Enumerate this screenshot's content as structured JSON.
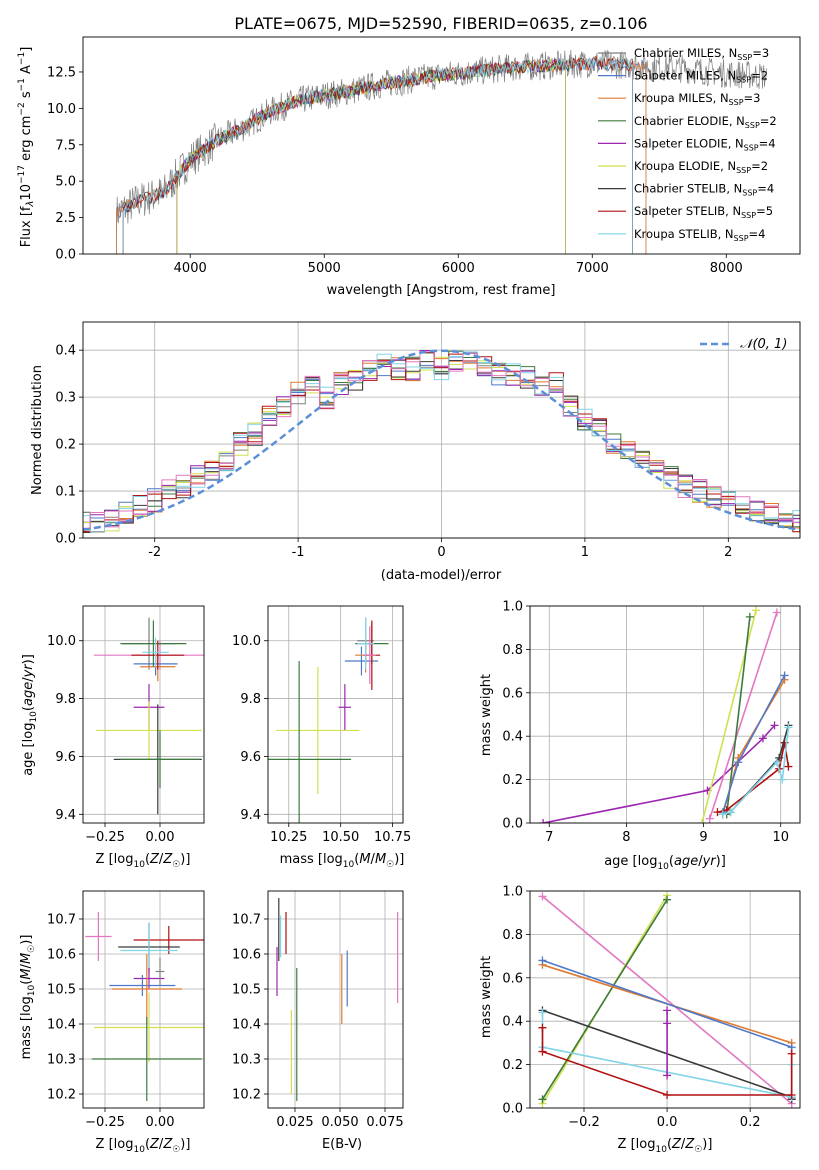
{
  "title": "PLATE=0675, MJD=52590, FIBERID=0635, z=0.106",
  "colors": {
    "Chabrier MILES": "#808080",
    "Salpeter MILES": "#4f79c8",
    "Kroupa MILES": "#e07a2e",
    "Chabrier ELODIE": "#3d7a3d",
    "Salpeter ELODIE": "#9b27af",
    "Kroupa ELODIE": "#d2e050",
    "Chabrier STELIB": "#3a3a3a",
    "Salpeter STELIB": "#b01010",
    "Kroupa STELIB": "#80d4e8",
    "pink": "#e377c2",
    "normal": "#5b8fd9"
  },
  "chart_data": [
    {
      "id": "spectrum",
      "type": "line",
      "xlabel": "wavelength [Angstrom, rest frame]",
      "ylabel": "Flux [fλ10⁻¹⁷ erg cm⁻² s⁻¹ A⁻¹]",
      "xlim": [
        3200,
        8550
      ],
      "ylim": [
        0,
        14.9
      ],
      "xticks": [
        4000,
        5000,
        6000,
        7000,
        8000
      ],
      "yticks": [
        0.0,
        2.5,
        5.0,
        7.5,
        10.0,
        12.5
      ],
      "legend_position": "right",
      "legend": [
        "Chabrier MILES, N_SSP=3",
        "Salpeter MILES, N_SSP=2",
        "Kroupa MILES, N_SSP=3",
        "Chabrier ELODIE, N_SSP=2",
        "Salpeter ELODIE, N_SSP=4",
        "Kroupa ELODIE, N_SSP=2",
        "Chabrier STELIB, N_SSP=4",
        "Salpeter STELIB, N_SSP=5",
        "Kroupa STELIB, N_SSP=4"
      ],
      "x": [
        3450,
        3600,
        3800,
        4000,
        4200,
        4400,
        4600,
        4800,
        5000,
        5200,
        5400,
        5600,
        5800,
        6000,
        6200,
        6400,
        6600,
        6800,
        7000,
        7200,
        7400,
        7600,
        7800,
        8000,
        8300
      ],
      "y": [
        2.8,
        3.6,
        4.2,
        6.5,
        7.8,
        8.7,
        9.8,
        10.5,
        10.9,
        11.2,
        11.6,
        11.9,
        12.2,
        12.4,
        12.6,
        12.8,
        12.9,
        13.0,
        13.1,
        13.0,
        12.9,
        12.8,
        12.6,
        12.4,
        12.2
      ],
      "model_ranges": [
        [
          3450,
          8300
        ],
        [
          3450,
          7400
        ],
        [
          3450,
          7400
        ],
        [
          3900,
          6800
        ],
        [
          3900,
          6800
        ],
        [
          3900,
          6800
        ],
        [
          3500,
          7300
        ],
        [
          3500,
          7300
        ],
        [
          3500,
          7300
        ]
      ]
    },
    {
      "id": "residual-hist",
      "type": "histogram",
      "xlabel": "(data-model)/error",
      "ylabel": "Normed distribution",
      "xlim": [
        -2.5,
        2.5
      ],
      "ylim": [
        0,
        0.46
      ],
      "xticks": [
        -2,
        -1,
        0,
        1,
        2
      ],
      "yticks": [
        0.0,
        0.1,
        0.2,
        0.3,
        0.4
      ],
      "legend": [
        "𝒩(0, 1)"
      ],
      "legend_position": "upper right",
      "bin_width": 0.1,
      "base_profile": [
        0.03,
        0.035,
        0.04,
        0.05,
        0.055,
        0.06,
        0.07,
        0.08,
        0.09,
        0.1,
        0.11,
        0.12,
        0.13,
        0.14,
        0.15,
        0.16,
        0.18,
        0.2,
        0.22,
        0.24,
        0.26,
        0.28,
        0.3,
        0.31,
        0.33,
        0.32,
        0.3,
        0.31,
        0.33,
        0.34,
        0.35,
        0.36,
        0.37,
        0.38,
        0.36,
        0.35,
        0.36,
        0.38,
        0.37,
        0.36,
        0.38,
        0.39,
        0.38,
        0.37,
        0.36,
        0.35,
        0.36,
        0.35,
        0.34,
        0.33,
        0.32,
        0.33,
        0.3,
        0.28,
        0.27,
        0.25,
        0.24,
        0.22,
        0.2,
        0.18,
        0.17,
        0.16,
        0.15,
        0.14,
        0.13,
        0.12,
        0.11,
        0.1,
        0.09,
        0.085,
        0.08,
        0.07,
        0.065,
        0.06,
        0.055,
        0.05,
        0.045,
        0.04,
        0.035,
        0.03
      ]
    },
    {
      "id": "age-vs-Z",
      "type": "errorbar",
      "xlabel": "Z [log10(Z/Z☉)]",
      "ylabel": "age [log10(age/yr)]",
      "xlim": [
        -0.35,
        0.2
      ],
      "ylim": [
        9.37,
        10.12
      ],
      "xticks": [
        -0.25,
        0.0
      ],
      "xticklabels": [
        "−0.25",
        "0.00"
      ],
      "yticks": [
        9.4,
        9.6,
        9.8,
        10.0
      ],
      "yticklabels": [
        "9.4",
        "9.6",
        "9.8",
        "10.0"
      ],
      "points": [
        {
          "x": 0.0,
          "y": 9.95,
          "xerr": 0.3,
          "yerr": 0.05,
          "c": "pink"
        },
        {
          "x": -0.05,
          "y": 9.99,
          "xerr": 0.12,
          "yerr": 0.09,
          "c": "Chabrier MILES"
        },
        {
          "x": -0.02,
          "y": 9.92,
          "xerr": 0.1,
          "yerr": 0.04,
          "c": "Salpeter MILES"
        },
        {
          "x": -0.01,
          "y": 9.91,
          "xerr": 0.08,
          "yerr": 0.05,
          "c": "Kroupa MILES"
        },
        {
          "x": -0.03,
          "y": 9.99,
          "xerr": 0.15,
          "yerr": 0.08,
          "c": "Chabrier ELODIE"
        },
        {
          "x": -0.05,
          "y": 9.77,
          "xerr": 0.07,
          "yerr": 0.08,
          "c": "Salpeter ELODIE"
        },
        {
          "x": -0.05,
          "y": 9.69,
          "xerr": 0.24,
          "yerr": 0.1,
          "c": "Kroupa ELODIE"
        },
        {
          "x": -0.01,
          "y": 9.95,
          "xerr": 0.12,
          "yerr": 0.05,
          "c": "Salpeter STELIB"
        },
        {
          "x": -0.01,
          "y": 9.59,
          "xerr": 0.2,
          "yerr": 0.19,
          "c": "Chabrier STELIB"
        },
        {
          "x": 0.0,
          "y": 9.59,
          "xerr": 0.18,
          "yerr": 0.1,
          "c": "Chabrier ELODIE"
        },
        {
          "x": -0.02,
          "y": 9.96,
          "xerr": 0.06,
          "yerr": 0.05,
          "c": "Kroupa STELIB"
        }
      ]
    },
    {
      "id": "age-vs-mass",
      "type": "errorbar",
      "xlabel": "mass [log10(M/M☉)]",
      "ylabel": "",
      "xlim": [
        10.15,
        10.8
      ],
      "ylim": [
        9.37,
        10.12
      ],
      "xticks": [
        10.25,
        10.5,
        10.75
      ],
      "xticklabels": [
        "10.25",
        "10.50",
        "10.75"
      ],
      "yticks": [
        9.4,
        9.6,
        9.8,
        10.0
      ],
      "yticklabels": [
        "9.4",
        "9.6",
        "9.8",
        "10.0"
      ],
      "points": [
        {
          "x": 10.62,
          "y": 10.0,
          "xerr": 0.04,
          "yerr": 0.08,
          "c": "Chabrier MILES"
        },
        {
          "x": 10.6,
          "y": 9.93,
          "xerr": 0.08,
          "yerr": 0.05,
          "c": "Salpeter MILES"
        },
        {
          "x": 10.62,
          "y": 9.95,
          "xerr": 0.05,
          "yerr": 0.06,
          "c": "Kroupa MILES"
        },
        {
          "x": 10.65,
          "y": 9.99,
          "xerr": 0.08,
          "yerr": 0.07,
          "c": "Chabrier ELODIE"
        },
        {
          "x": 10.52,
          "y": 9.77,
          "xerr": 0.03,
          "yerr": 0.08,
          "c": "Salpeter ELODIE"
        },
        {
          "x": 10.39,
          "y": 9.69,
          "xerr": 0.2,
          "yerr": 0.22,
          "c": "Kroupa ELODIE"
        },
        {
          "x": 10.65,
          "y": 9.95,
          "xerr": 0.04,
          "yerr": 0.12,
          "c": "Salpeter STELIB"
        },
        {
          "x": 10.3,
          "y": 9.59,
          "xerr": 0.25,
          "yerr": 0.34,
          "c": "Chabrier ELODIE"
        },
        {
          "x": 10.62,
          "y": 9.99,
          "xerr": 0.04,
          "yerr": 0.09,
          "c": "Kroupa STELIB"
        },
        {
          "x": 10.64,
          "y": 9.95,
          "xerr": 0.03,
          "yerr": 0.1,
          "c": "pink"
        }
      ]
    },
    {
      "id": "weight-vs-age",
      "type": "line",
      "xlabel": "age [log10(age/yr)]",
      "ylabel": "mass weight",
      "xlim": [
        6.75,
        10.25
      ],
      "ylim": [
        0,
        1
      ],
      "xticks": [
        7,
        8,
        9,
        10
      ],
      "xticklabels": [
        "7",
        "8",
        "9",
        "10"
      ],
      "yticks": [
        0.0,
        0.2,
        0.4,
        0.6,
        0.8,
        1.0
      ],
      "yticklabels": [
        "0.0",
        "0.2",
        "0.4",
        "0.6",
        "0.8",
        "1.0"
      ],
      "series": [
        {
          "c": "Salpeter ELODIE",
          "x": [
            6.92,
            9.05,
            9.77,
            9.92
          ],
          "y": [
            0.0,
            0.15,
            0.39,
            0.45
          ]
        },
        {
          "c": "Kroupa ELODIE",
          "x": [
            8.98,
            9.68
          ],
          "y": [
            0.0,
            0.98
          ]
        },
        {
          "c": "pink",
          "x": [
            9.08,
            9.95
          ],
          "y": [
            0.02,
            0.97
          ]
        },
        {
          "c": "Chabrier ELODIE",
          "x": [
            9.3,
            9.6
          ],
          "y": [
            0.04,
            0.95
          ]
        },
        {
          "c": "Kroupa MILES",
          "x": [
            9.25,
            9.45,
            10.05
          ],
          "y": [
            0.04,
            0.3,
            0.66
          ]
        },
        {
          "c": "Salpeter MILES",
          "x": [
            9.25,
            9.45,
            10.05
          ],
          "y": [
            0.05,
            0.28,
            0.68
          ]
        },
        {
          "c": "Salpeter STELIB",
          "x": [
            9.18,
            9.3,
            9.98,
            10.05,
            10.1
          ],
          "y": [
            0.05,
            0.06,
            0.25,
            0.37,
            0.26
          ]
        },
        {
          "c": "Chabrier STELIB",
          "x": [
            9.25,
            9.35,
            9.98,
            10.1
          ],
          "y": [
            0.04,
            0.05,
            0.3,
            0.45
          ]
        },
        {
          "c": "Kroupa STELIB",
          "x": [
            9.25,
            9.35,
            9.95,
            10.02,
            10.1
          ],
          "y": [
            0.04,
            0.05,
            0.28,
            0.2,
            0.44
          ]
        }
      ]
    },
    {
      "id": "mass-vs-Z",
      "type": "errorbar",
      "xlabel": "Z [log10(Z/Z☉)]",
      "ylabel": "mass [log10(M/M☉)]",
      "xlim": [
        -0.35,
        0.2
      ],
      "ylim": [
        10.16,
        10.78
      ],
      "xticks": [
        -0.25,
        0.0
      ],
      "xticklabels": [
        "−0.25",
        "0.00"
      ],
      "yticks": [
        10.2,
        10.3,
        10.4,
        10.5,
        10.6,
        10.7
      ],
      "yticklabels": [
        "10.2",
        "10.3",
        "10.4",
        "10.5",
        "10.6",
        "10.7"
      ],
      "points": [
        {
          "x": -0.28,
          "y": 10.65,
          "xerr": 0.06,
          "yerr": 0.07,
          "c": "pink"
        },
        {
          "x": 0.04,
          "y": 10.64,
          "xerr": 0.16,
          "yerr": 0.04,
          "c": "Salpeter STELIB"
        },
        {
          "x": -0.05,
          "y": 10.62,
          "xerr": 0.14,
          "yerr": 0.07,
          "c": "Chabrier STELIB"
        },
        {
          "x": -0.05,
          "y": 10.61,
          "xerr": 0.13,
          "yerr": 0.08,
          "c": "Kroupa STELIB"
        },
        {
          "x": -0.05,
          "y": 10.53,
          "xerr": 0.07,
          "yerr": 0.03,
          "c": "Salpeter ELODIE"
        },
        {
          "x": -0.08,
          "y": 10.51,
          "xerr": 0.15,
          "yerr": 0.03,
          "c": "Salpeter MILES"
        },
        {
          "x": -0.06,
          "y": 10.5,
          "xerr": 0.16,
          "yerr": 0.1,
          "c": "Kroupa MILES"
        },
        {
          "x": -0.05,
          "y": 10.39,
          "xerr": 0.25,
          "yerr": 0.1,
          "c": "Kroupa ELODIE"
        },
        {
          "x": -0.06,
          "y": 10.3,
          "xerr": 0.25,
          "yerr": 0.12,
          "c": "Chabrier ELODIE"
        },
        {
          "x": 0.0,
          "y": 10.55,
          "xerr": 0.02,
          "yerr": 0.04,
          "c": "Chabrier MILES"
        }
      ]
    },
    {
      "id": "mass-vs-ebv",
      "type": "errorbar",
      "xlabel": "E(B-V)",
      "ylabel": "",
      "xlim": [
        0.01,
        0.085
      ],
      "ylim": [
        10.16,
        10.78
      ],
      "xticks": [
        0.025,
        0.05,
        0.075
      ],
      "xticklabels": [
        "0.025",
        "0.050",
        "0.075"
      ],
      "yticks": [
        10.2,
        10.3,
        10.4,
        10.5,
        10.6,
        10.7
      ],
      "yticklabels": [
        "10.2",
        "10.3",
        "10.4",
        "10.5",
        "10.6",
        "10.7"
      ],
      "points": [
        {
          "x": 0.016,
          "y": 10.67,
          "xerr": 0,
          "yerr": 0.09,
          "c": "Chabrier STELIB"
        },
        {
          "x": 0.015,
          "y": 10.55,
          "xerr": 0,
          "yerr": 0.07,
          "c": "Salpeter ELODIE"
        },
        {
          "x": 0.017,
          "y": 10.65,
          "xerr": 0,
          "yerr": 0.06,
          "c": "Kroupa STELIB"
        },
        {
          "x": 0.02,
          "y": 10.66,
          "xerr": 0,
          "yerr": 0.06,
          "c": "Salpeter STELIB"
        },
        {
          "x": 0.023,
          "y": 10.32,
          "xerr": 0,
          "yerr": 0.12,
          "c": "Kroupa ELODIE"
        },
        {
          "x": 0.026,
          "y": 10.37,
          "xerr": 0,
          "yerr": 0.19,
          "c": "Chabrier ELODIE"
        },
        {
          "x": 0.051,
          "y": 10.5,
          "xerr": 0,
          "yerr": 0.1,
          "c": "Kroupa MILES"
        },
        {
          "x": 0.054,
          "y": 10.53,
          "xerr": 0,
          "yerr": 0.08,
          "c": "Salpeter MILES"
        },
        {
          "x": 0.082,
          "y": 10.59,
          "xerr": 0,
          "yerr": 0.13,
          "c": "pink"
        }
      ]
    },
    {
      "id": "weight-vs-Z",
      "type": "line",
      "xlabel": "Z [log10(Z/Z☉)]",
      "ylabel": "mass weight",
      "xlim": [
        -0.33,
        0.32
      ],
      "ylim": [
        0,
        1
      ],
      "xticks": [
        -0.2,
        0.0,
        0.2
      ],
      "xticklabels": [
        "−0.2",
        "0.0",
        "0.2"
      ],
      "yticks": [
        0.0,
        0.2,
        0.4,
        0.6,
        0.8,
        1.0
      ],
      "yticklabels": [
        "0.0",
        "0.2",
        "0.4",
        "0.6",
        "0.8",
        "1.0"
      ],
      "series": [
        {
          "c": "pink",
          "x": [
            -0.3,
            0.3
          ],
          "y": [
            0.975,
            0.02
          ]
        },
        {
          "c": "Kroupa ELODIE",
          "x": [
            -0.3,
            0.0
          ],
          "y": [
            0.02,
            0.98
          ]
        },
        {
          "c": "Chabrier ELODIE",
          "x": [
            -0.3,
            0.0
          ],
          "y": [
            0.04,
            0.96
          ]
        },
        {
          "c": "Kroupa MILES",
          "x": [
            -0.3,
            0.3,
            0.3
          ],
          "y": [
            0.66,
            0.3,
            0.04
          ]
        },
        {
          "c": "Salpeter MILES",
          "x": [
            -0.3,
            0.3,
            0.3
          ],
          "y": [
            0.68,
            0.28,
            0.04
          ]
        },
        {
          "c": "Chabrier STELIB",
          "x": [
            -0.3,
            0.3,
            0.3
          ],
          "y": [
            0.45,
            0.05,
            0.04
          ]
        },
        {
          "c": "Kroupa STELIB",
          "x": [
            -0.3,
            -0.3,
            0.3,
            0.3
          ],
          "y": [
            0.44,
            0.28,
            0.05,
            0.2
          ]
        },
        {
          "c": "Salpeter ELODIE",
          "x": [
            0.0,
            0.0,
            0.0
          ],
          "y": [
            0.45,
            0.15,
            0.39
          ]
        },
        {
          "c": "Salpeter STELIB",
          "x": [
            -0.3,
            -0.3,
            0.0,
            0.3,
            0.3
          ],
          "y": [
            0.37,
            0.26,
            0.06,
            0.06,
            0.25
          ]
        }
      ]
    }
  ]
}
